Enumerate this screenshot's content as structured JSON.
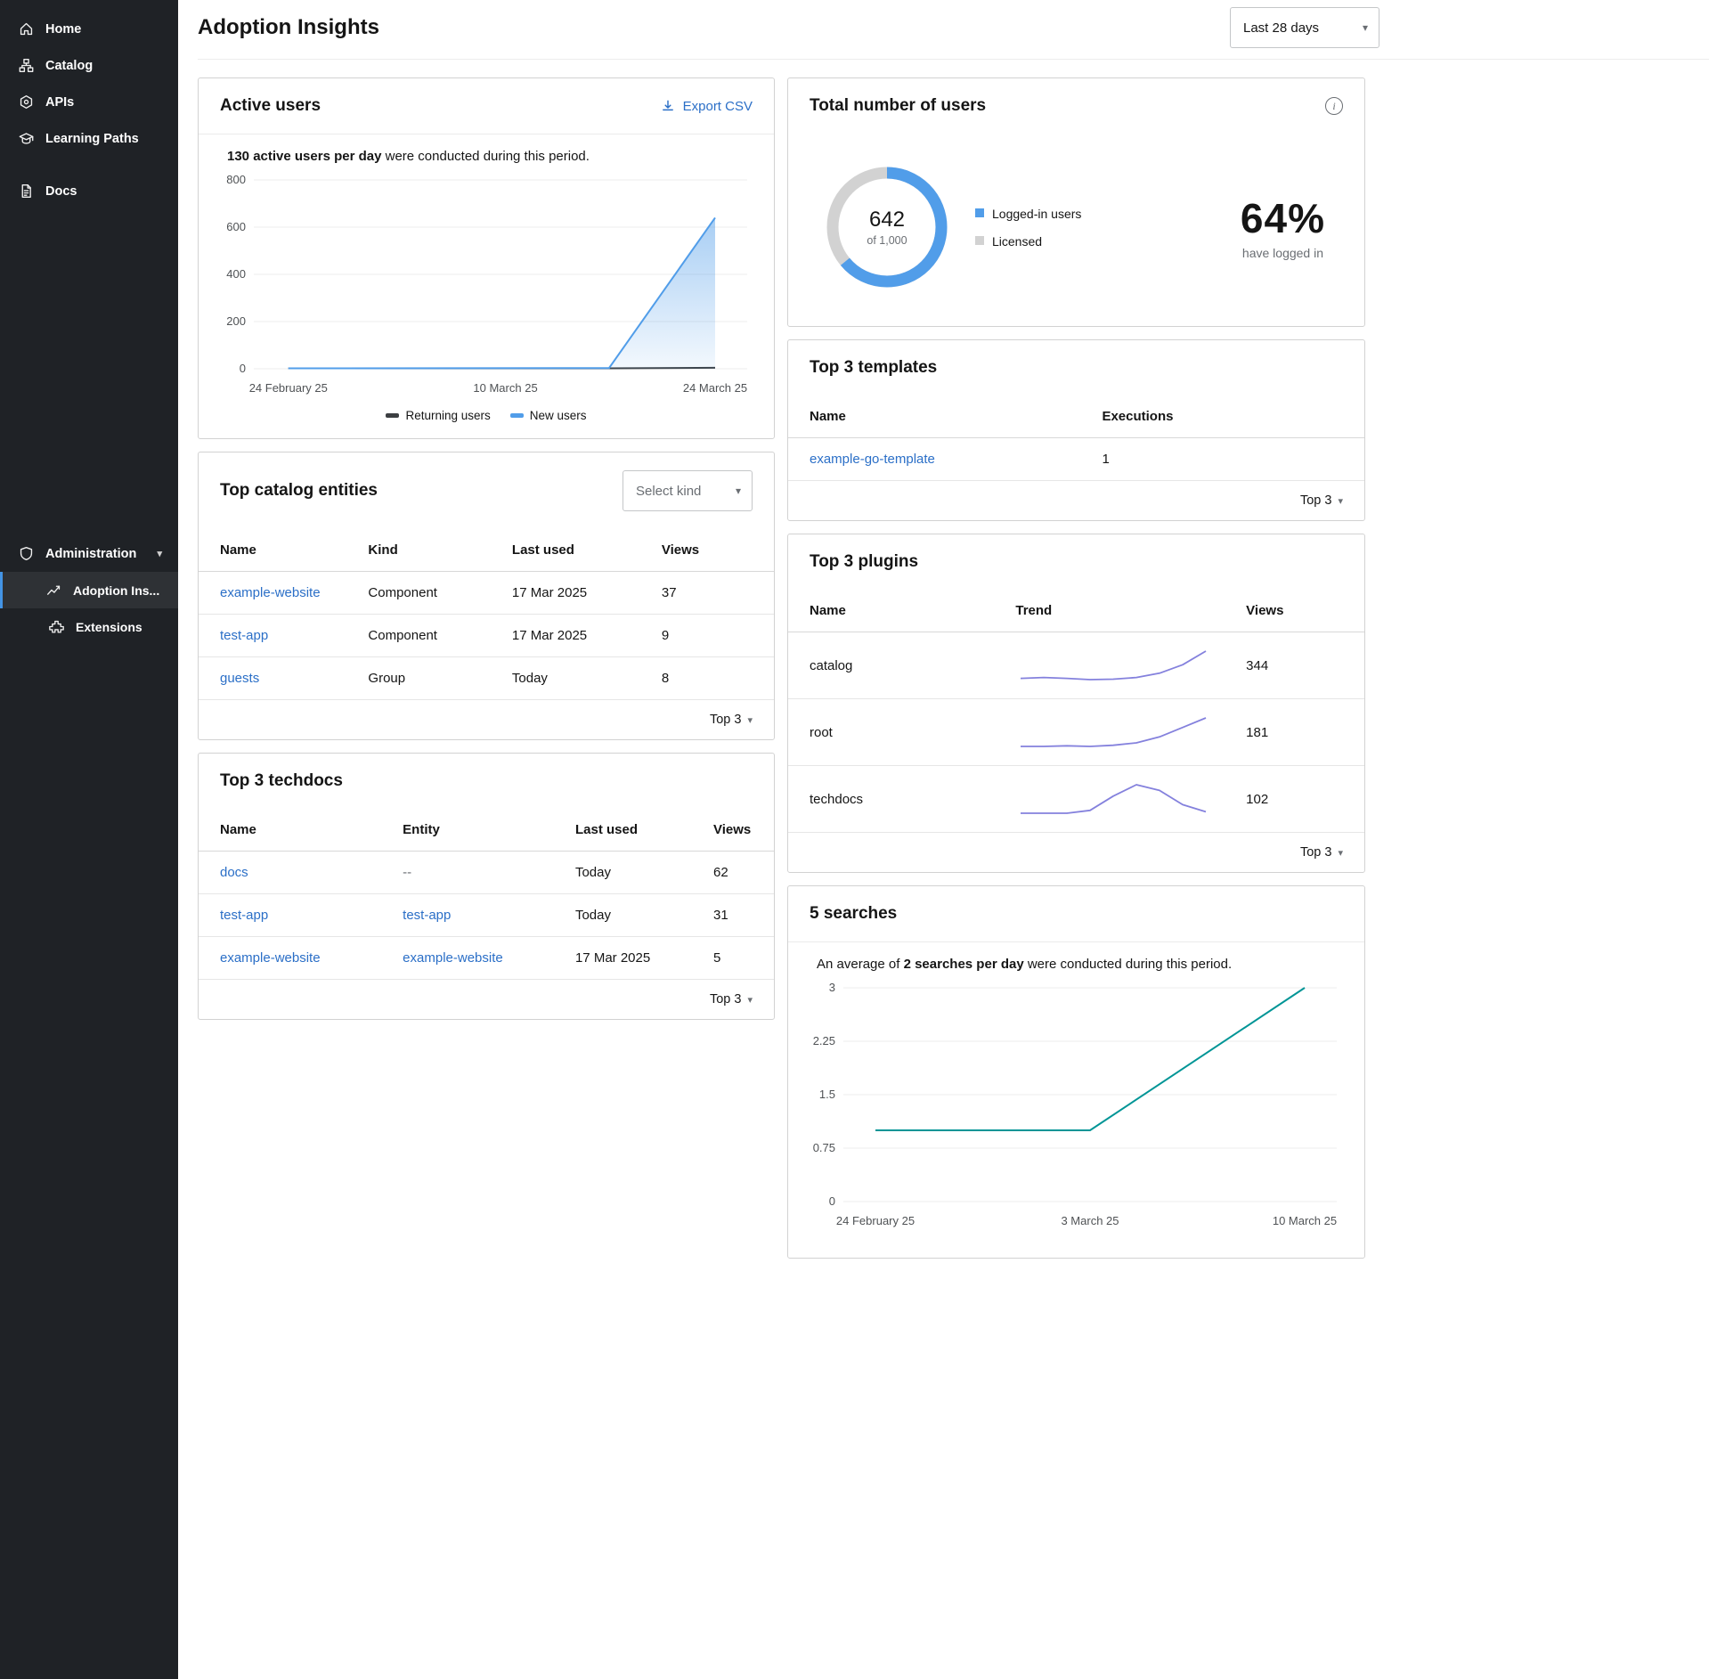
{
  "colors": {
    "sidebar_bg": "#1f2226",
    "accent_blue": "#4394e5",
    "link_blue": "#2b6fc7",
    "chart_blue": "#519de9",
    "chart_gray": "#d2d2d2",
    "chart_purple": "#8481dd",
    "chart_teal": "#009596",
    "returning_users": "#3c3f42"
  },
  "sidebar": {
    "items": [
      {
        "label": "Home"
      },
      {
        "label": "Catalog"
      },
      {
        "label": "APIs"
      },
      {
        "label": "Learning Paths"
      },
      {
        "label": "Docs"
      }
    ],
    "administration": {
      "label": "Administration",
      "children": [
        {
          "label": "Adoption Ins...",
          "active": true
        },
        {
          "label": "Extensions",
          "active": false
        }
      ]
    }
  },
  "header": {
    "title": "Adoption Insights",
    "period_select": "Last 28 days"
  },
  "active_users_card": {
    "title": "Active users",
    "export_label": "Export CSV",
    "summary_bold": "130 active users per day",
    "summary_rest": " were conducted during this period."
  },
  "total_users_card": {
    "title": "Total number of users",
    "donut_value": "642",
    "donut_sub": "of 1,000",
    "legend": [
      {
        "label": "Logged-in users"
      },
      {
        "label": "Licensed"
      }
    ],
    "percent": "64%",
    "percent_sub": "have logged in"
  },
  "catalog_card": {
    "title": "Top catalog entities",
    "select_placeholder": "Select kind",
    "columns": [
      "Name",
      "Kind",
      "Last used",
      "Views"
    ],
    "rows": [
      {
        "name": "example-website",
        "kind": "Component",
        "last_used": "17 Mar 2025",
        "views": "37"
      },
      {
        "name": "test-app",
        "kind": "Component",
        "last_used": "17 Mar 2025",
        "views": "9"
      },
      {
        "name": "guests",
        "kind": "Group",
        "last_used": "Today",
        "views": "8"
      }
    ],
    "footer": "Top 3"
  },
  "templates_card": {
    "title": "Top 3 templates",
    "columns": [
      "Name",
      "Executions"
    ],
    "rows": [
      {
        "name": "example-go-template",
        "executions": "1"
      }
    ],
    "footer": "Top 3"
  },
  "techdocs_card": {
    "title": "Top 3 techdocs",
    "columns": [
      "Name",
      "Entity",
      "Last used",
      "Views"
    ],
    "rows": [
      {
        "name": "docs",
        "entity": "--",
        "last_used": "Today",
        "views": "62"
      },
      {
        "name": "test-app",
        "entity": "test-app",
        "last_used": "Today",
        "views": "31"
      },
      {
        "name": "example-website",
        "entity": "example-website",
        "last_used": "17 Mar 2025",
        "views": "5"
      }
    ],
    "footer": "Top 3"
  },
  "plugins_card": {
    "title": "Top 3 plugins",
    "columns": [
      "Name",
      "Trend",
      "Views"
    ],
    "rows": [
      {
        "name": "catalog",
        "views": "344"
      },
      {
        "name": "root",
        "views": "181"
      },
      {
        "name": "techdocs",
        "views": "102"
      }
    ],
    "footer": "Top 3"
  },
  "searches_card": {
    "title": "5 searches",
    "summary_pre": "An average of ",
    "summary_bold": "2 searches per day",
    "summary_rest": " were conducted during this period."
  },
  "chart_data": {
    "active_users": {
      "type": "area",
      "title": "Active users per day",
      "ylim": [
        0,
        800
      ],
      "yticks": [
        0,
        200,
        400,
        600,
        800
      ],
      "xticks": [
        {
          "label": "24 February 25",
          "pos": 0.07
        },
        {
          "label": "10 March 25",
          "pos": 0.51
        },
        {
          "label": "24 March 25",
          "pos": 0.935
        }
      ],
      "series": [
        {
          "name": "Returning users",
          "color": "#3c3f42",
          "fill": false,
          "points": [
            [
              0.07,
              2
            ],
            [
              0.72,
              2
            ],
            [
              0.935,
              4
            ]
          ]
        },
        {
          "name": "New users",
          "color": "#519de9",
          "fill": true,
          "points": [
            [
              0.07,
              2
            ],
            [
              0.72,
              3
            ],
            [
              0.935,
              640
            ]
          ]
        }
      ]
    },
    "total_users": {
      "type": "donut",
      "value": 642,
      "total": 1000,
      "percent": 64,
      "colors": {
        "filled": "#519de9",
        "rest": "#d2d2d2"
      },
      "legend": [
        "Logged-in users",
        "Licensed"
      ]
    },
    "plugins_trend": {
      "type": "sparkline",
      "color": "#8481dd",
      "series": [
        {
          "name": "catalog",
          "values": [
            2,
            2.1,
            2,
            1.85,
            1.9,
            2.1,
            2.6,
            3.6,
            5.2
          ]
        },
        {
          "name": "root",
          "values": [
            1.2,
            1.2,
            1.25,
            1.2,
            1.3,
            1.5,
            2,
            2.8,
            3.6
          ]
        },
        {
          "name": "techdocs",
          "values": [
            1,
            1,
            1,
            1.2,
            2.2,
            3,
            2.6,
            1.6,
            1.1
          ]
        }
      ]
    },
    "searches": {
      "type": "line",
      "title": "Searches per day",
      "color": "#009596",
      "ylim": [
        0,
        3
      ],
      "yticks": [
        0,
        0.75,
        1.5,
        2.25,
        3
      ],
      "xticks": [
        {
          "label": "24 February 25",
          "pos": 0.065
        },
        {
          "label": "3 March 25",
          "pos": 0.5
        },
        {
          "label": "10 March 25",
          "pos": 0.935
        }
      ],
      "points": [
        [
          0.065,
          1
        ],
        [
          0.5,
          1
        ],
        [
          0.935,
          3
        ]
      ]
    }
  }
}
